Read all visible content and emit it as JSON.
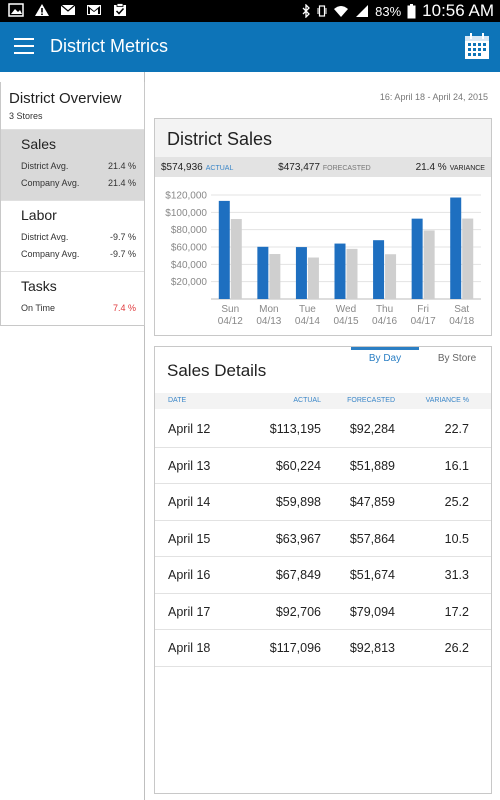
{
  "status_bar": {
    "battery": "83%",
    "time": "10:56 AM",
    "left_icons": [
      "picture-icon",
      "warning-icon",
      "mail-icon",
      "gmail-icon",
      "clipboard-icon"
    ],
    "right_icons": [
      "bluetooth-icon",
      "vibrate-icon",
      "wifi-icon",
      "signal-icon",
      "battery-icon"
    ]
  },
  "app_bar": {
    "title": "District Metrics",
    "color": "#0d74b8"
  },
  "sidebar": {
    "overview_title": "District Overview",
    "overview_subtitle": "3 Stores",
    "items": [
      {
        "title": "Sales",
        "rows": [
          {
            "label": "District Avg.",
            "value": "21.4 %"
          },
          {
            "label": "Company Avg.",
            "value": "21.4 %"
          }
        ]
      },
      {
        "title": "Labor",
        "rows": [
          {
            "label": "District Avg.",
            "value": "-9.7 %"
          },
          {
            "label": "Company Avg.",
            "value": "-9.7 %"
          }
        ]
      },
      {
        "title": "Tasks",
        "rows": [
          {
            "label": "On Time",
            "value": "7.4 %"
          }
        ]
      }
    ]
  },
  "main": {
    "date_range": "16: April 18 - April 24, 2015"
  },
  "sales_card": {
    "title": "District Sales",
    "actual_value": "$574,936",
    "actual_label": "ACTUAL",
    "forecast_value": "$473,477",
    "forecast_label": "FORECASTED",
    "variance_value": "21.4 %",
    "variance_label": "VARIANCE"
  },
  "chart_data": {
    "type": "bar",
    "categories": [
      "Sun",
      "Mon",
      "Tue",
      "Wed",
      "Thu",
      "Fri",
      "Sat"
    ],
    "sub_labels": [
      "04/12",
      "04/13",
      "04/14",
      "04/15",
      "04/16",
      "04/17",
      "04/18"
    ],
    "series": [
      {
        "values": [
          113195,
          60224,
          59898,
          63967,
          67849,
          92706,
          117096
        ],
        "color": "#1e6fc0"
      },
      {
        "values": [
          92284,
          51889,
          47859,
          57864,
          51674,
          79094,
          92813
        ],
        "color": "#cfcfcf"
      }
    ],
    "y_ticks": [
      "$120,000",
      "$100,000",
      "$80,000",
      "$60,000",
      "$40,000",
      "$20,000"
    ],
    "ylim": [
      0,
      120000
    ],
    "grid": true
  },
  "details": {
    "title": "Sales Details",
    "tab_day": "By Day",
    "tab_store": "By Store",
    "columns": [
      "DATE",
      "ACTUAL",
      "FORECASTED",
      "VARIANCE %"
    ],
    "rows": [
      {
        "date": "April 12",
        "actual": "$113,195",
        "forecast": "$92,284",
        "variance": "22.7"
      },
      {
        "date": "April 13",
        "actual": "$60,224",
        "forecast": "$51,889",
        "variance": "16.1"
      },
      {
        "date": "April 14",
        "actual": "$59,898",
        "forecast": "$47,859",
        "variance": "25.2"
      },
      {
        "date": "April 15",
        "actual": "$63,967",
        "forecast": "$57,864",
        "variance": "10.5"
      },
      {
        "date": "April 16",
        "actual": "$67,849",
        "forecast": "$51,674",
        "variance": "31.3"
      },
      {
        "date": "April 17",
        "actual": "$92,706",
        "forecast": "$79,094",
        "variance": "17.2"
      },
      {
        "date": "April 18",
        "actual": "$117,096",
        "forecast": "$92,813",
        "variance": "26.2"
      }
    ]
  }
}
